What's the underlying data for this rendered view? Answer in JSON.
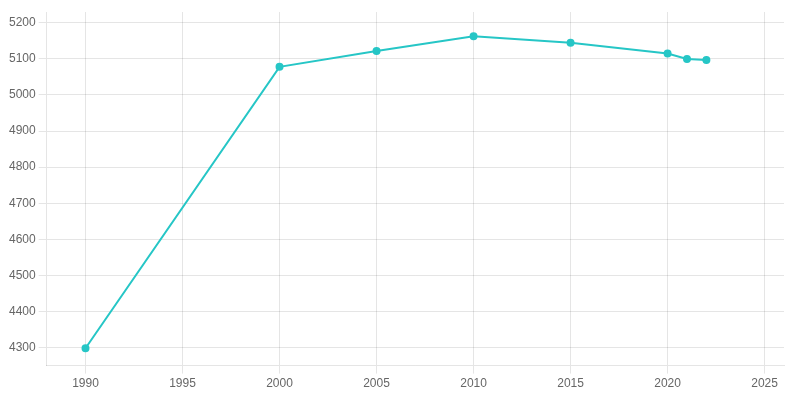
{
  "chart_data": {
    "type": "line",
    "x": [
      1990,
      2000,
      2005,
      2010,
      2015,
      2020,
      2021,
      2022
    ],
    "values": [
      4298,
      5078,
      5122,
      5163,
      5145,
      5115,
      5100,
      5097
    ],
    "color": "#26C6C6",
    "marker": "o",
    "xlim": [
      1988,
      2026
    ],
    "ylim": [
      4250,
      5230
    ],
    "xticks": [
      1990,
      1995,
      2000,
      2005,
      2010,
      2015,
      2020,
      2025
    ],
    "yticks": [
      4300,
      4400,
      4500,
      4600,
      4700,
      4800,
      4900,
      5000,
      5100,
      5200
    ],
    "grid": true
  }
}
